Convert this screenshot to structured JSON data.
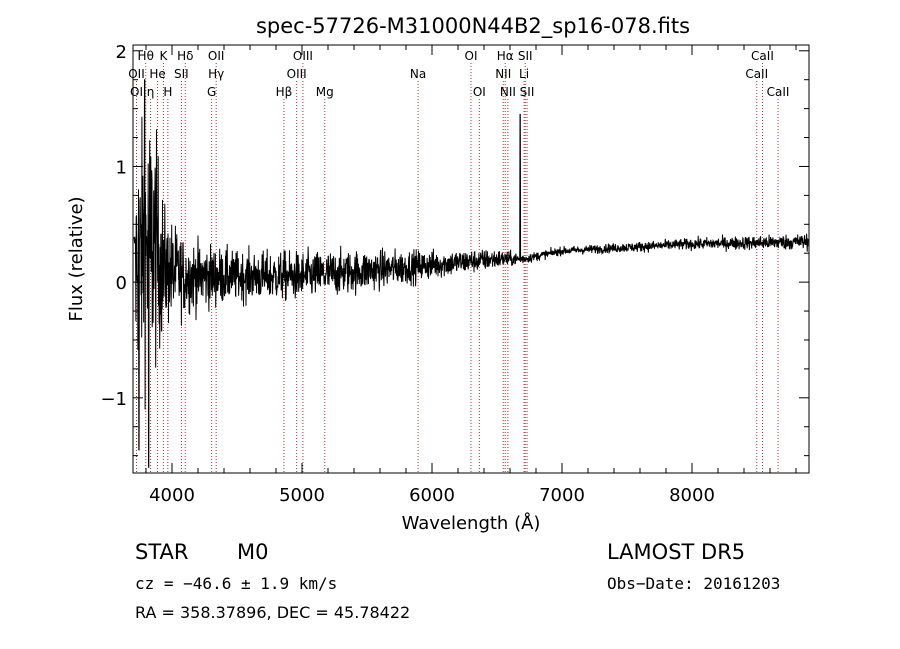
{
  "chart_data": {
    "type": "line",
    "title": "spec-57726-M31000N44B2_sp16-078.fits",
    "xlabel": "Wavelength (Å)",
    "ylabel": "Flux (relative)",
    "xlim": [
      3700,
      8900
    ],
    "ylim": [
      -1.65,
      2.05
    ],
    "xticks": [
      4000,
      5000,
      6000,
      7000,
      8000
    ],
    "yticks": [
      -1,
      0,
      1,
      2
    ],
    "line_color": "#000000",
    "marker_color": "#b03030",
    "spectrum": {
      "noise_pattern": "seeded pseudo-random",
      "anchors": [
        {
          "x": 3720,
          "y": 0.2,
          "amp": 1.4
        },
        {
          "x": 3850,
          "y": 0.35,
          "amp": 1.6
        },
        {
          "x": 3950,
          "y": 0.1,
          "amp": 0.7
        },
        {
          "x": 4100,
          "y": 0.05,
          "amp": 0.45
        },
        {
          "x": 4500,
          "y": 0.05,
          "amp": 0.3
        },
        {
          "x": 5000,
          "y": 0.05,
          "amp": 0.3
        },
        {
          "x": 5500,
          "y": 0.1,
          "amp": 0.25
        },
        {
          "x": 6000,
          "y": 0.15,
          "amp": 0.18
        },
        {
          "x": 6500,
          "y": 0.2,
          "amp": 0.12
        },
        {
          "x": 6700,
          "y": 0.2,
          "amp": 0.06
        },
        {
          "x": 7000,
          "y": 0.27,
          "amp": 0.05
        },
        {
          "x": 8000,
          "y": 0.33,
          "amp": 0.07
        },
        {
          "x": 8900,
          "y": 0.35,
          "amp": 0.1
        }
      ],
      "spikes": [
        {
          "x": 6678,
          "y": 1.45
        },
        {
          "x": 3745,
          "y": -1.45
        },
        {
          "x": 3790,
          "y": 1.75
        },
        {
          "x": 3820,
          "y": -1.6
        }
      ]
    },
    "lines": [
      {
        "label": "Hθ",
        "x": 3798,
        "row": 0
      },
      {
        "label": "K",
        "x": 3934,
        "row": 0
      },
      {
        "label": "Hδ",
        "x": 4102,
        "row": 0
      },
      {
        "label": "OII",
        "x": 4340,
        "row": 0
      },
      {
        "label": "OIII",
        "x": 5007,
        "row": 0
      },
      {
        "label": "OI",
        "x": 6300,
        "row": 0
      },
      {
        "label": "Hα",
        "x": 6563,
        "row": 0
      },
      {
        "label": "SII",
        "x": 6717,
        "row": 0
      },
      {
        "label": "CaII",
        "x": 8542,
        "row": 0
      },
      {
        "label": "OII",
        "x": 3727,
        "row": 1
      },
      {
        "label": "He",
        "x": 3889,
        "row": 1
      },
      {
        "label": "SII",
        "x": 4072,
        "row": 1
      },
      {
        "label": "Hγ",
        "x": 4340,
        "row": 1
      },
      {
        "label": "OIII",
        "x": 4959,
        "row": 1
      },
      {
        "label": "NII",
        "x": 6548,
        "row": 1
      },
      {
        "label": "Li",
        "x": 6708,
        "row": 1
      },
      {
        "label": "CaII",
        "x": 8498,
        "row": 1
      },
      {
        "label": "OI",
        "x": 3727,
        "row": 2
      },
      {
        "label": "η",
        "x": 3835,
        "row": 2
      },
      {
        "label": "H",
        "x": 3968,
        "row": 2
      },
      {
        "label": "G",
        "x": 4305,
        "row": 2
      },
      {
        "label": "Hβ",
        "x": 4861,
        "row": 2
      },
      {
        "label": "Mg",
        "x": 5175,
        "row": 2
      },
      {
        "label": "Na",
        "x": 5893,
        "row": 1
      },
      {
        "label": "OI",
        "x": 6364,
        "row": 2
      },
      {
        "label": "NII",
        "x": 6584,
        "row": 2
      },
      {
        "label": "SII",
        "x": 6731,
        "row": 2
      },
      {
        "label": "CaII",
        "x": 8662,
        "row": 2
      }
    ]
  },
  "info": {
    "class": "STAR",
    "subclass": "M0",
    "survey": "LAMOST DR5",
    "cz": "cz = −46.6 ± 1.9 km/s",
    "obs_date": "Obs−Date: 20161203",
    "coords": "RA = 358.37896, DEC =  45.78422"
  }
}
